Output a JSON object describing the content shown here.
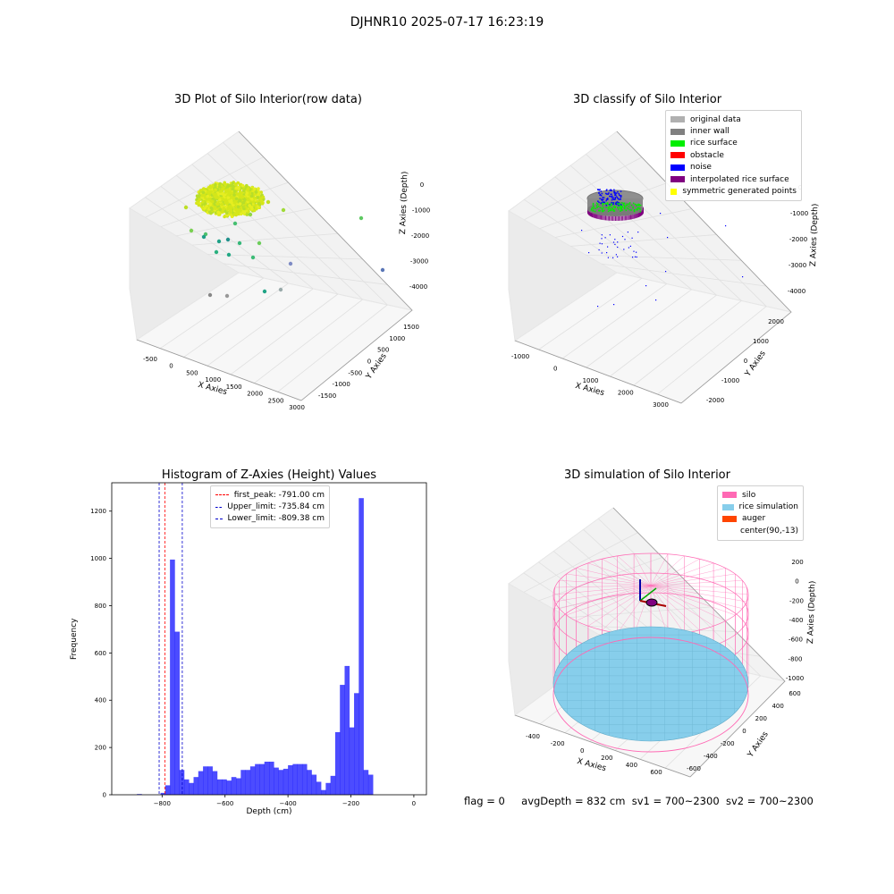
{
  "suptitle": "DJHNR10 2025-07-17 16:23:19",
  "footer": {
    "flag": "flag = 0",
    "avg_depth": "avgDepth = 832 cm",
    "sv1": "sv1 = 700~2300",
    "sv2": "sv2 = 700~2300"
  },
  "plot1": {
    "title": "3D Plot of Silo Interior(row data)",
    "xlabel": "X Axies",
    "ylabel": "Y Axies",
    "zlabel": "Z Axies (Depth)",
    "xticks": [
      "-500",
      "0",
      "500",
      "1000",
      "1500",
      "2000",
      "2500",
      "3000"
    ],
    "yticks": [
      "-1500",
      "-1000",
      "-500",
      "0",
      "500",
      "1000",
      "1500"
    ],
    "zticks": [
      "0",
      "-1000",
      "-2000",
      "-3000",
      "-4000"
    ]
  },
  "plot2": {
    "title": "3D classify of Silo Interior",
    "xlabel": "X Axies",
    "ylabel": "Y Axies",
    "zlabel": "Z Axies (Depth)",
    "xticks": [
      "-1000",
      "0",
      "1000",
      "2000",
      "3000"
    ],
    "yticks": [
      "-2000",
      "-1000",
      "0",
      "1000",
      "2000"
    ],
    "zticks": [
      "0",
      "-1000",
      "-2000",
      "-3000",
      "-4000"
    ],
    "legend": [
      {
        "label": "original data",
        "color": "#b0b0b0"
      },
      {
        "label": "inner wall",
        "color": "#808080"
      },
      {
        "label": "rice surface",
        "color": "#00ee00"
      },
      {
        "label": "obstacle",
        "color": "#ff0000"
      },
      {
        "label": "noise",
        "color": "#0000ff"
      },
      {
        "label": "interpolated rice surface",
        "color": "#800080"
      },
      {
        "label": "symmetric generated points",
        "color": "#ffff00"
      }
    ]
  },
  "plot4": {
    "title": "3D simulation of Silo Interior",
    "xlabel": "X Axies",
    "ylabel": "Y Axies",
    "zlabel": "Z Axies (Depth)",
    "xticks": [
      "-400",
      "-200",
      "0",
      "200",
      "400",
      "600"
    ],
    "yticks": [
      "-600",
      "-400",
      "-200",
      "0",
      "200",
      "400",
      "600"
    ],
    "zticks": [
      "200",
      "0",
      "-200",
      "-400",
      "-600",
      "-800",
      "-1000"
    ],
    "legend": [
      {
        "label": "silo",
        "color": "#ff69b4"
      },
      {
        "label": "rice simulation",
        "color": "#87ceeb"
      },
      {
        "label": "auger",
        "color": "#ff4500"
      },
      {
        "label": "center(90,-13)",
        "color": "none"
      }
    ]
  },
  "chart_data": {
    "type": "bar",
    "title": "Histogram of Z-Axies (Height) Values",
    "xlabel": "Depth (cm)",
    "ylabel": "Frequency",
    "xlim": [
      -960,
      40
    ],
    "ylim": [
      0,
      1320
    ],
    "xticks": [
      -800,
      -600,
      -400,
      -200,
      0
    ],
    "yticks": [
      0,
      200,
      400,
      600,
      800,
      1000,
      1200
    ],
    "bin_width": 15,
    "bin_start": -880,
    "values": [
      3,
      0,
      0,
      0,
      0,
      8,
      40,
      995,
      690,
      105,
      65,
      50,
      75,
      100,
      120,
      120,
      100,
      65,
      65,
      60,
      75,
      70,
      105,
      105,
      120,
      130,
      130,
      140,
      140,
      115,
      105,
      110,
      125,
      130,
      130,
      130,
      105,
      85,
      55,
      20,
      50,
      80,
      265,
      465,
      545,
      285,
      430,
      1255,
      105,
      85
    ],
    "bar_color": "#0000ff",
    "bar_alpha": 0.7,
    "vlines": [
      {
        "label": "first_peak: -791.00 cm",
        "x": -791.0,
        "color": "#ff0000"
      },
      {
        "label": "Upper_limit: -735.84 cm",
        "x": -735.84,
        "color": "#0000cc"
      },
      {
        "label": "Lower_limit: -809.38 cm",
        "x": -809.38,
        "color": "#0000cc"
      }
    ]
  }
}
